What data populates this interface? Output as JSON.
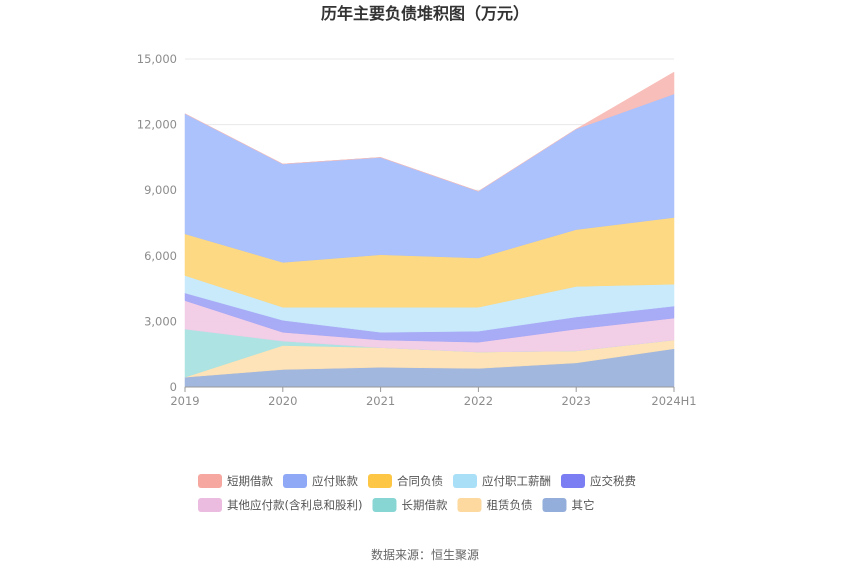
{
  "chart_data": {
    "type": "area",
    "stacked": true,
    "title": "历年主要负债堆积图（万元）",
    "xlabel": "",
    "ylabel": "",
    "categories": [
      "2019",
      "2020",
      "2021",
      "2022",
      "2023",
      "2024H1"
    ],
    "ylim": [
      0,
      15000
    ],
    "yticks": [
      0,
      3000,
      6000,
      9000,
      12000,
      15000
    ],
    "ytick_labels": [
      "0",
      "3,000",
      "6,000",
      "9,000",
      "12,000",
      "15,000"
    ],
    "grid": true,
    "legend_position": "bottom",
    "series": [
      {
        "name": "其它",
        "color": "#9db3dc",
        "values": [
          450,
          800,
          900,
          850,
          1100,
          1750
        ]
      },
      {
        "name": "租赁负债",
        "color": "#fde1b3",
        "values": [
          0,
          1100,
          900,
          750,
          550,
          400
        ]
      },
      {
        "name": "长期借款",
        "color": "#a9e3e1",
        "values": [
          2200,
          200,
          0,
          0,
          0,
          0
        ]
      },
      {
        "name": "其他应付款(含利息和股利)",
        "color": "#f1cbe6",
        "values": [
          1300,
          400,
          350,
          450,
          1000,
          1000
        ]
      },
      {
        "name": "应交税费",
        "color": "#a3a7f6",
        "values": [
          350,
          550,
          350,
          500,
          550,
          550
        ]
      },
      {
        "name": "应付职工薪酬",
        "color": "#c6e9fa",
        "values": [
          800,
          600,
          1150,
          1100,
          1400,
          1000
        ]
      },
      {
        "name": "合同负债",
        "color": "#fed77c",
        "values": [
          1900,
          2050,
          2400,
          2250,
          2600,
          3050
        ]
      },
      {
        "name": "应付账款",
        "color": "#a8bffc",
        "values": [
          5500,
          4500,
          4450,
          3050,
          4600,
          5650
        ]
      },
      {
        "name": "短期借款",
        "color": "#f8bcb6",
        "values": [
          0,
          0,
          0,
          0,
          0,
          1000
        ]
      }
    ],
    "legend_order": [
      "短期借款",
      "应付账款",
      "合同负债",
      "应付职工薪酬",
      "应交税费",
      "其他应付款(含利息和股利)",
      "长期借款",
      "租赁负债",
      "其它"
    ],
    "legend_colors": {
      "短期借款": "#f6a7a0",
      "应付账款": "#8fa9f7",
      "合同负债": "#fdc645",
      "应付职工薪酬": "#a9dff7",
      "应交税费": "#7a7ef2",
      "其他应付款(含利息和股利)": "#ebbce0",
      "长期借款": "#88d6d4",
      "租赁负债": "#fdd9a0",
      "其它": "#94aedb"
    }
  },
  "source_text": "数据来源：恒生聚源"
}
